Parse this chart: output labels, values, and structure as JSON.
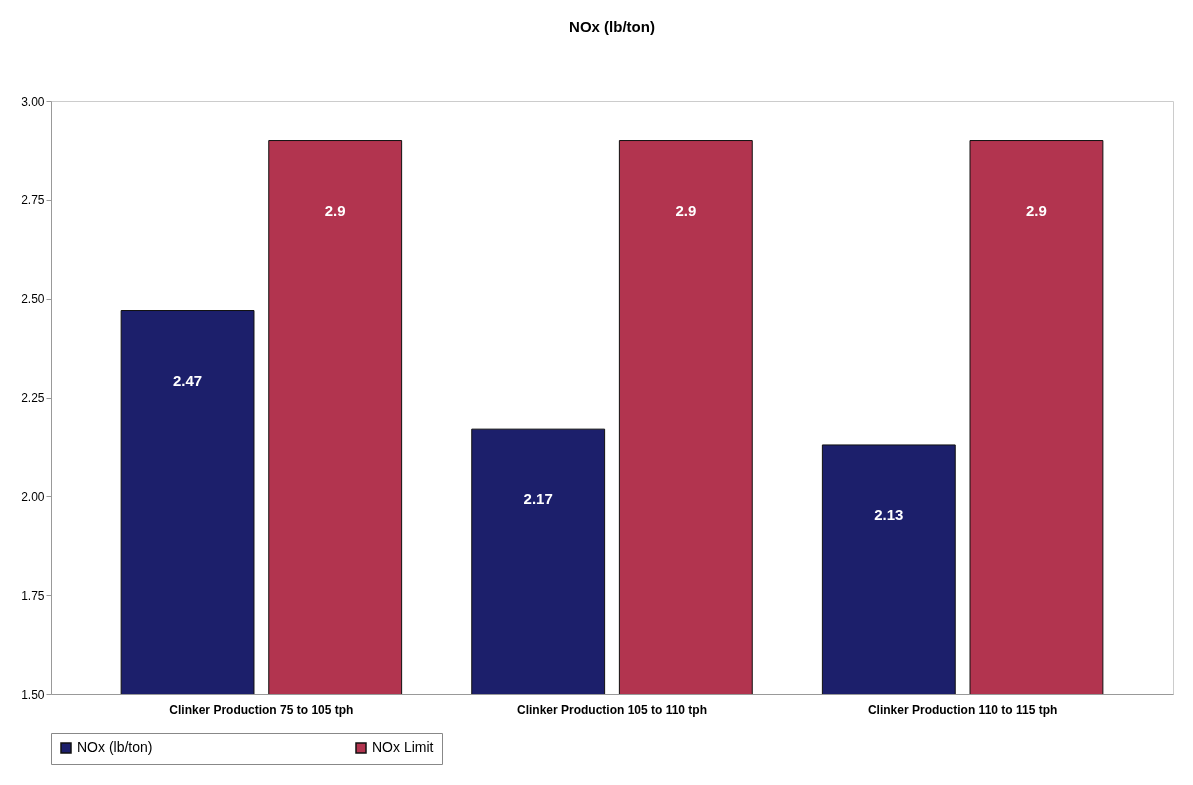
{
  "chart_data": {
    "type": "bar",
    "title": "NOx (lb/ton)",
    "categories": [
      "Clinker Production 75 to 105 tph",
      "Clinker Production 105 to 110 tph",
      "Clinker Production 110 to 115 tph"
    ],
    "series": [
      {
        "name": "NOx (lb/ton)",
        "color": "#1c1f6b",
        "values": [
          2.47,
          2.17,
          2.13
        ]
      },
      {
        "name": "NOx Limit",
        "color": "#b2344f",
        "values": [
          2.9,
          2.9,
          2.9
        ]
      }
    ],
    "ylim": [
      1.5,
      3.0
    ],
    "yticks": [
      {
        "value": 1.5,
        "label": "1.50"
      },
      {
        "value": 1.75,
        "label": "1.75"
      },
      {
        "value": 2.0,
        "label": "2.00"
      },
      {
        "value": 2.25,
        "label": "2.25"
      },
      {
        "value": 2.5,
        "label": "2.50"
      },
      {
        "value": 2.75,
        "label": "2.75"
      },
      {
        "value": 3.0,
        "label": "3.00"
      }
    ],
    "data_labels": true,
    "legend": "bottom"
  }
}
